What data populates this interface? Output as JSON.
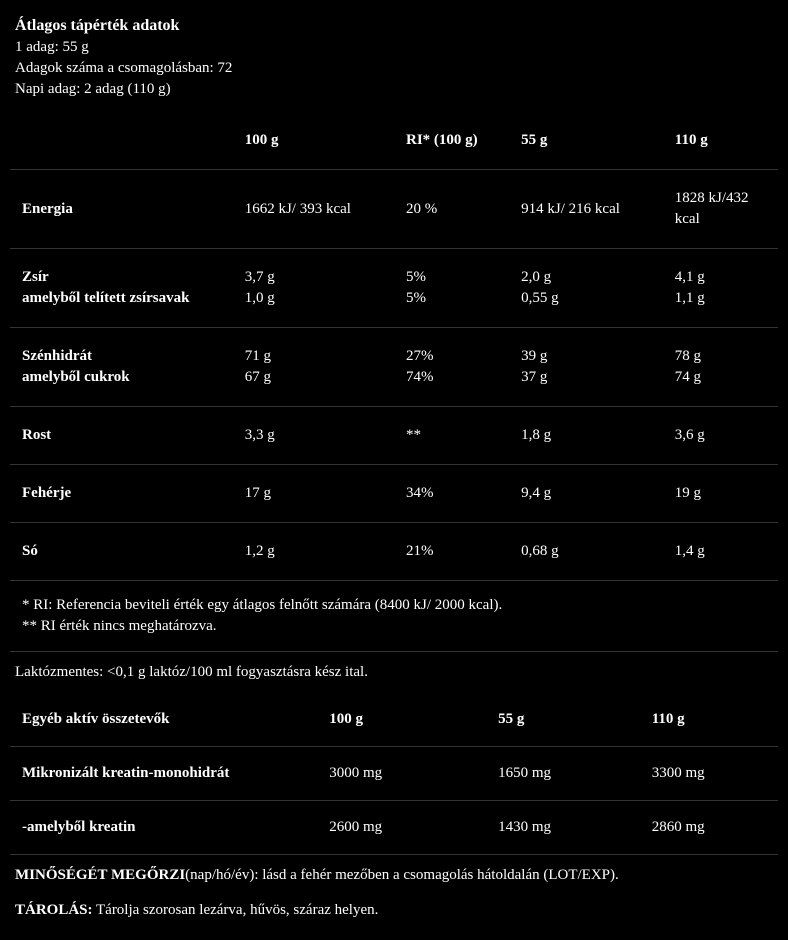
{
  "colors": {
    "background": "#000000",
    "text": "#ffffff",
    "border": "#333333"
  },
  "header": {
    "title": "Átlagos tápérték adatok",
    "serving": "1 adag: 55 g",
    "servings_count": "Adagok száma a csomagolásban: 72",
    "daily": "Napi adag: 2 adag (110 g)"
  },
  "main_table": {
    "columns": [
      "",
      "100 g",
      "RI* (100 g)",
      "55 g",
      "110 g"
    ],
    "rows": [
      {
        "label": "Energia",
        "c100": "1662 kJ/ 393 kcal",
        "ri": "20 %",
        "c55": "914 kJ/ 216 kcal",
        "c110": "1828 kJ/432 kcal"
      },
      {
        "label": "Zsír\namelyből telített zsírsavak",
        "c100": "3,7 g\n1,0 g",
        "ri": "5%\n5%",
        "c55": "2,0 g\n0,55 g",
        "c110": "4,1 g\n1,1 g"
      },
      {
        "label": "Szénhidrát\namelyből cukrok",
        "c100": "71 g\n67 g",
        "ri": "27%\n74%",
        "c55": "39 g\n37 g",
        "c110": "78 g\n74 g"
      },
      {
        "label": "Rost",
        "c100": "3,3 g",
        "ri": "**",
        "c55": "1,8 g",
        "c110": "3,6 g"
      },
      {
        "label": "Fehérje",
        "c100": "17 g",
        "ri": "34%",
        "c55": "9,4 g",
        "c110": "19 g"
      },
      {
        "label": "Só",
        "c100": "1,2 g",
        "ri": "21%",
        "c55": "0,68 g",
        "c110": "1,4 g"
      }
    ]
  },
  "footnotes": {
    "line1": "* RI: Referencia beviteli érték egy átlagos felnőtt számára (8400 kJ/ 2000 kcal).",
    "line2": "** RI érték nincs meghatározva."
  },
  "lactose_note": "Laktózmentes: <0,1 g laktóz/100 ml fogyasztásra kész ital.",
  "sub_table": {
    "columns": [
      "Egyéb aktív összetevők",
      "100 g",
      "55 g",
      "110 g"
    ],
    "rows": [
      {
        "label": "Mikronizált kreatin-monohidrát",
        "c100": "3000 mg",
        "c55": "1650 mg",
        "c110": "3300 mg"
      },
      {
        "label": "-amelyből kreatin",
        "c100": "2600 mg",
        "c55": "1430 mg",
        "c110": "2860 mg"
      }
    ]
  },
  "bottom": {
    "bestby_label": "MINŐSÉGÉT MEGŐRZI",
    "bestby_text": "(nap/hó/év): lásd a fehér mezőben a csomagolás hátoldalán (LOT/EXP).",
    "storage_label": "TÁROLÁS:",
    "storage_text": " Tárolja szorosan lezárva, hűvös, száraz helyen."
  }
}
